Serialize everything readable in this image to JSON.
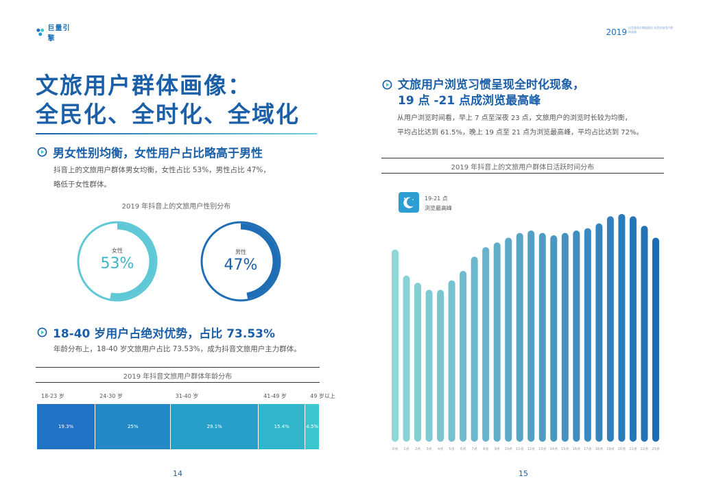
{
  "header": {
    "logo_text": "巨量引擎",
    "year": "2019",
    "year_note": "抖音旅游大数据报告 抖音文旅用户群体画像"
  },
  "left_page": {
    "title_line1": "文旅用户群体画像：",
    "title_line2": "全民化、全时化、全域化",
    "gender_section": {
      "heading": "男女性别均衡，女性用户占比略高于男性",
      "body_line1": "抖音上的文旅用户群体男女均衡，女性占比 53%，男性占比 47%，",
      "body_line2": "略低于女性群体。",
      "caption": "2019 年抖音上的文旅用户性别分布",
      "female": {
        "label": "女性",
        "value_text": "53%",
        "value": 53,
        "color": "#5ec8d6"
      },
      "male": {
        "label": "男性",
        "value_text": "47%",
        "value": 47,
        "color": "#1f6db4"
      }
    },
    "age_section": {
      "heading": "18-40 岁用户占绝对优势，占比 73.53%",
      "body": "年龄分布上，18-40 岁文旅用户占比 73.53%，成为抖音文旅用户主力群体。",
      "caption": "2019 年抖音文旅用户群体年龄分布",
      "groups": [
        {
          "label": "18-23 岁",
          "value_text": "19.3%",
          "value": 19.3,
          "color": "#1f72c4"
        },
        {
          "label": "24-30 岁",
          "value_text": "25%",
          "value": 25,
          "color": "#2289c6"
        },
        {
          "label": "31-40 岁",
          "value_text": "29.1%",
          "value": 29.1,
          "color": "#279fc8"
        },
        {
          "label": "41-49 岁",
          "value_text": "15.4%",
          "value": 15.4,
          "color": "#30b5cb"
        },
        {
          "label": "49 岁以上",
          "value_text": "4.5%",
          "value": 4.5,
          "color": "#3cc6cf"
        }
      ]
    },
    "page_number": "14"
  },
  "right_page": {
    "heading_line1": "文旅用户浏览习惯呈现全时化现象，",
    "heading_line2": "19 点 -21 点成浏览最高峰",
    "body_line1": "从用户浏览时间看，早上 7 点至深夜 23 点，文旅用户的浏览时长较为均衡，",
    "body_line2": "平均占比达到 61.5%，晚上 19 点至 21 点为浏览最高峰，平均占比达到 72%。",
    "caption": "2019 年抖音上的文旅用户群体日活跃时间分布",
    "badge_line1": "19-21 点",
    "badge_line2": "浏览最高峰",
    "badge_icon": "moon-icon",
    "page_number": "15"
  },
  "chart_data": {
    "type": "bar",
    "title": "2019 年抖音上的文旅用户群体日活跃时间分布",
    "categories": [
      "0点",
      "1点",
      "2点",
      "3点",
      "4点",
      "5点",
      "6点",
      "7点",
      "8点",
      "9点",
      "10点",
      "11点",
      "12点",
      "13点",
      "14点",
      "15点",
      "16点",
      "17点",
      "18点",
      "19点",
      "20点",
      "21点",
      "22点",
      "23点"
    ],
    "values": [
      81,
      70,
      67,
      64,
      64,
      68,
      72,
      78,
      82,
      84,
      86,
      88,
      89,
      88,
      87,
      88,
      89,
      90,
      92,
      95,
      96,
      95,
      91,
      86
    ],
    "ylim": [
      0,
      100
    ],
    "colors": {
      "start": "#8fd8d6",
      "end": "#1d6db5"
    }
  }
}
